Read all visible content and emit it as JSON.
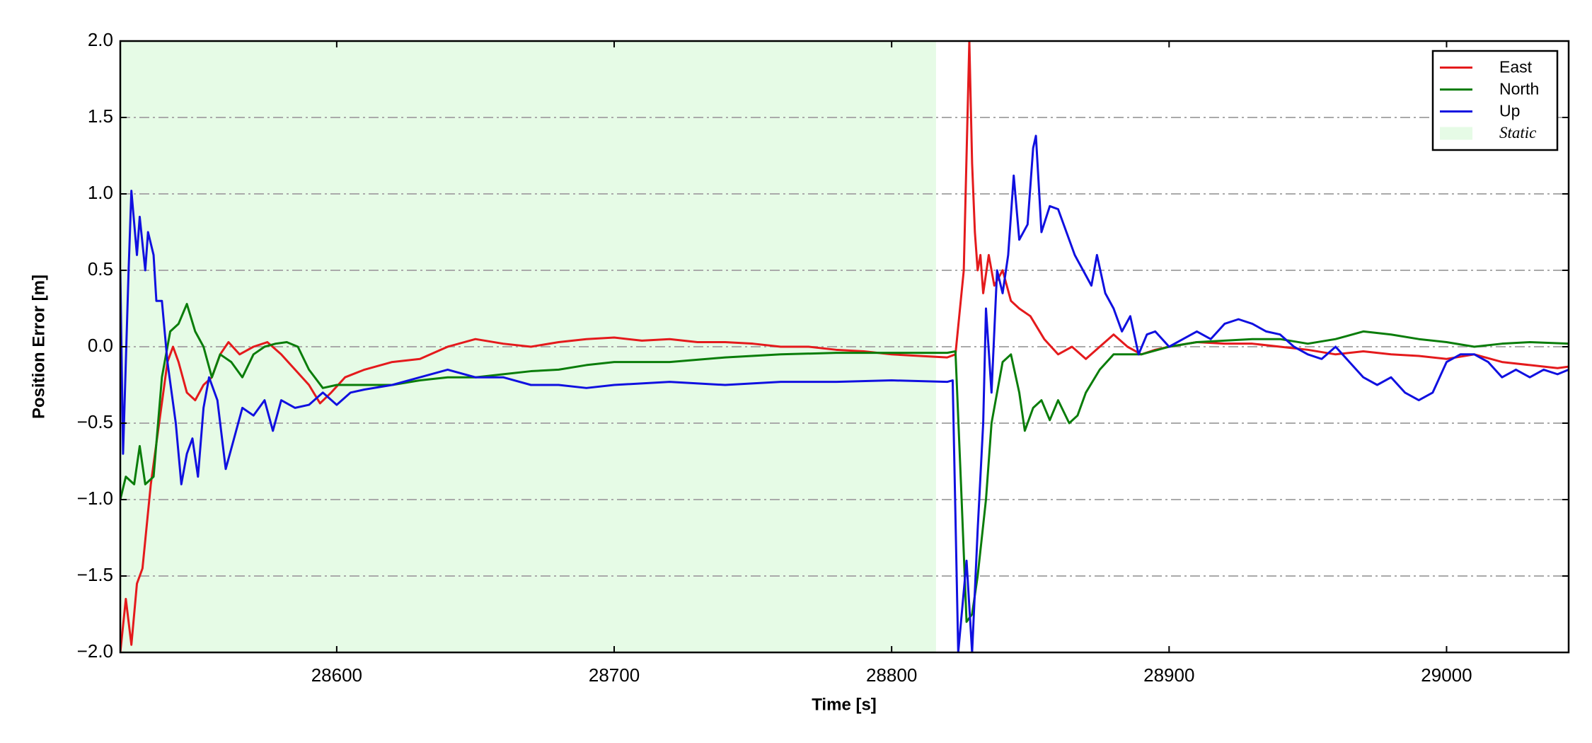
{
  "chart_data": {
    "type": "line",
    "xlabel": "Time [s]",
    "ylabel": "Position Error [m]",
    "xlim": [
      28522,
      29044
    ],
    "ylim": [
      -2,
      2
    ],
    "xticks": [
      28600,
      28700,
      28800,
      28900,
      29000
    ],
    "yticks": [
      {
        "value": -2,
        "label": "−2.0"
      },
      {
        "value": -1.5,
        "label": "−1.5"
      },
      {
        "value": -1,
        "label": "−1.0"
      },
      {
        "value": -0.5,
        "label": "−0.5"
      },
      {
        "value": 0,
        "label": "0.0"
      },
      {
        "value": 0.5,
        "label": "0.5"
      },
      {
        "value": 1,
        "label": "1.0"
      },
      {
        "value": 1.5,
        "label": "1.5"
      },
      {
        "value": 2,
        "label": "2.0"
      }
    ],
    "grid": true,
    "legend": "upper right",
    "static": {
      "name": "Static",
      "span": [
        28522,
        28816
      ],
      "color": "#e6fbe6"
    },
    "series": [
      {
        "name": "East",
        "color": "#e41a1c",
        "x": [
          28522,
          28524,
          28526,
          28528,
          28530,
          28533,
          28536,
          28539,
          28541,
          28543,
          28546,
          28549,
          28552,
          28555,
          28558,
          28561,
          28565,
          28570,
          28575,
          28580,
          28585,
          28590,
          28594,
          28598,
          28603,
          28610,
          28620,
          28630,
          28640,
          28650,
          28660,
          28670,
          28680,
          28690,
          28700,
          28710,
          28720,
          28730,
          28740,
          28750,
          28760,
          28770,
          28780,
          28790,
          28800,
          28810,
          28820,
          28823,
          28826,
          28828,
          28829,
          28830,
          28831,
          28832,
          28833,
          28835,
          28837,
          28840,
          28843,
          28846,
          28850,
          28855,
          28860,
          28865,
          28870,
          28875,
          28880,
          28885,
          28890,
          28895,
          28900,
          28910,
          28920,
          28930,
          28940,
          28950,
          28960,
          28970,
          28980,
          28990,
          29000,
          29010,
          29020,
          29030,
          29040,
          29044
        ],
        "values": [
          -2.0,
          -1.65,
          -1.95,
          -1.55,
          -1.45,
          -0.9,
          -0.5,
          -0.1,
          0.0,
          -0.1,
          -0.3,
          -0.35,
          -0.25,
          -0.2,
          -0.05,
          0.03,
          -0.05,
          0.0,
          0.03,
          -0.05,
          -0.15,
          -0.25,
          -0.37,
          -0.3,
          -0.2,
          -0.15,
          -0.1,
          -0.08,
          0.0,
          0.05,
          0.02,
          0.0,
          0.03,
          0.05,
          0.06,
          0.04,
          0.05,
          0.03,
          0.03,
          0.02,
          0.0,
          0.0,
          -0.02,
          -0.03,
          -0.05,
          -0.06,
          -0.07,
          -0.05,
          0.5,
          2.0,
          1.2,
          0.75,
          0.5,
          0.6,
          0.35,
          0.6,
          0.4,
          0.5,
          0.3,
          0.25,
          0.2,
          0.05,
          -0.05,
          0.0,
          -0.08,
          0.0,
          0.08,
          0.0,
          -0.05,
          -0.02,
          0.0,
          0.03,
          0.02,
          0.02,
          0.0,
          -0.02,
          -0.05,
          -0.03,
          -0.05,
          -0.06,
          -0.08,
          -0.05,
          -0.1,
          -0.12,
          -0.14,
          -0.13
        ]
      },
      {
        "name": "North",
        "color": "#0a7d0a",
        "x": [
          28522,
          28524,
          28527,
          28529,
          28531,
          28534,
          28537,
          28540,
          28543,
          28546,
          28549,
          28552,
          28555,
          28558,
          28562,
          28566,
          28570,
          28574,
          28578,
          28582,
          28586,
          28590,
          28595,
          28600,
          28610,
          28620,
          28630,
          28640,
          28650,
          28660,
          28670,
          28680,
          28690,
          28700,
          28720,
          28740,
          28760,
          28780,
          28800,
          28820,
          28823,
          28825,
          28827,
          28829,
          28831,
          28834,
          28836,
          28840,
          28843,
          28846,
          28848,
          28851,
          28854,
          28857,
          28860,
          28864,
          28867,
          28870,
          28875,
          28880,
          28890,
          28900,
          28910,
          28920,
          28930,
          28940,
          28950,
          28960,
          28970,
          28980,
          28990,
          29000,
          29010,
          29020,
          29030,
          29044
        ],
        "values": [
          -1.0,
          -0.85,
          -0.9,
          -0.65,
          -0.9,
          -0.85,
          -0.2,
          0.1,
          0.15,
          0.28,
          0.1,
          0.0,
          -0.2,
          -0.05,
          -0.1,
          -0.2,
          -0.05,
          0.0,
          0.02,
          0.03,
          0.0,
          -0.15,
          -0.27,
          -0.25,
          -0.25,
          -0.25,
          -0.22,
          -0.2,
          -0.2,
          -0.18,
          -0.16,
          -0.15,
          -0.12,
          -0.1,
          -0.1,
          -0.07,
          -0.05,
          -0.04,
          -0.04,
          -0.04,
          -0.03,
          -0.9,
          -1.8,
          -1.75,
          -1.5,
          -1.0,
          -0.5,
          -0.1,
          -0.05,
          -0.3,
          -0.55,
          -0.4,
          -0.35,
          -0.48,
          -0.35,
          -0.5,
          -0.45,
          -0.3,
          -0.15,
          -0.05,
          -0.05,
          0.0,
          0.03,
          0.04,
          0.05,
          0.05,
          0.02,
          0.05,
          0.1,
          0.08,
          0.05,
          0.03,
          0.0,
          0.02,
          0.03,
          0.02
        ]
      },
      {
        "name": "Up",
        "color": "#1010e0",
        "x": [
          28522,
          28523,
          28525,
          28526,
          28528,
          28529,
          28531,
          28532,
          28534,
          28535,
          28537,
          28539,
          28542,
          28544,
          28546,
          28548,
          28550,
          28552,
          28554,
          28557,
          28560,
          28563,
          28566,
          28570,
          28574,
          28577,
          28580,
          28585,
          28590,
          28595,
          28600,
          28605,
          28610,
          28620,
          28630,
          28640,
          28650,
          28660,
          28670,
          28680,
          28690,
          28700,
          28720,
          28740,
          28760,
          28780,
          28800,
          28820,
          28822,
          28824,
          28827,
          28829,
          28831,
          28833,
          28834,
          28836,
          28838,
          28840,
          28842,
          28844,
          28846,
          28849,
          28851,
          28852,
          28854,
          28857,
          28860,
          28863,
          28866,
          28869,
          28872,
          28874,
          28877,
          28880,
          28883,
          28886,
          28889,
          28892,
          28895,
          28900,
          28905,
          28910,
          28915,
          28920,
          28925,
          28930,
          28935,
          28940,
          28945,
          28950,
          28955,
          28960,
          28965,
          28970,
          28975,
          28980,
          28985,
          28990,
          28995,
          29000,
          29005,
          29010,
          29015,
          29020,
          29025,
          29030,
          29035,
          29040,
          29044
        ],
        "values": [
          0.5,
          -0.7,
          0.5,
          1.02,
          0.6,
          0.85,
          0.5,
          0.75,
          0.6,
          0.3,
          0.3,
          -0.1,
          -0.5,
          -0.9,
          -0.7,
          -0.6,
          -0.85,
          -0.4,
          -0.2,
          -0.35,
          -0.8,
          -0.6,
          -0.4,
          -0.45,
          -0.35,
          -0.55,
          -0.35,
          -0.4,
          -0.38,
          -0.3,
          -0.38,
          -0.3,
          -0.28,
          -0.25,
          -0.2,
          -0.15,
          -0.2,
          -0.2,
          -0.25,
          -0.25,
          -0.27,
          -0.25,
          -0.23,
          -0.25,
          -0.23,
          -0.23,
          -0.22,
          -0.23,
          -0.22,
          -2.0,
          -1.4,
          -2.0,
          -1.2,
          -0.5,
          0.25,
          -0.3,
          0.5,
          0.35,
          0.6,
          1.12,
          0.7,
          0.8,
          1.3,
          1.38,
          0.75,
          0.92,
          0.9,
          0.75,
          0.6,
          0.5,
          0.4,
          0.6,
          0.35,
          0.25,
          0.1,
          0.2,
          -0.05,
          0.08,
          0.1,
          0.0,
          0.05,
          0.1,
          0.05,
          0.15,
          0.18,
          0.15,
          0.1,
          0.08,
          0.0,
          -0.05,
          -0.08,
          0.0,
          -0.1,
          -0.2,
          -0.25,
          -0.2,
          -0.3,
          -0.35,
          -0.3,
          -0.1,
          -0.05,
          -0.05,
          -0.1,
          -0.2,
          -0.15,
          -0.2,
          -0.15,
          -0.18,
          -0.15
        ]
      }
    ]
  }
}
